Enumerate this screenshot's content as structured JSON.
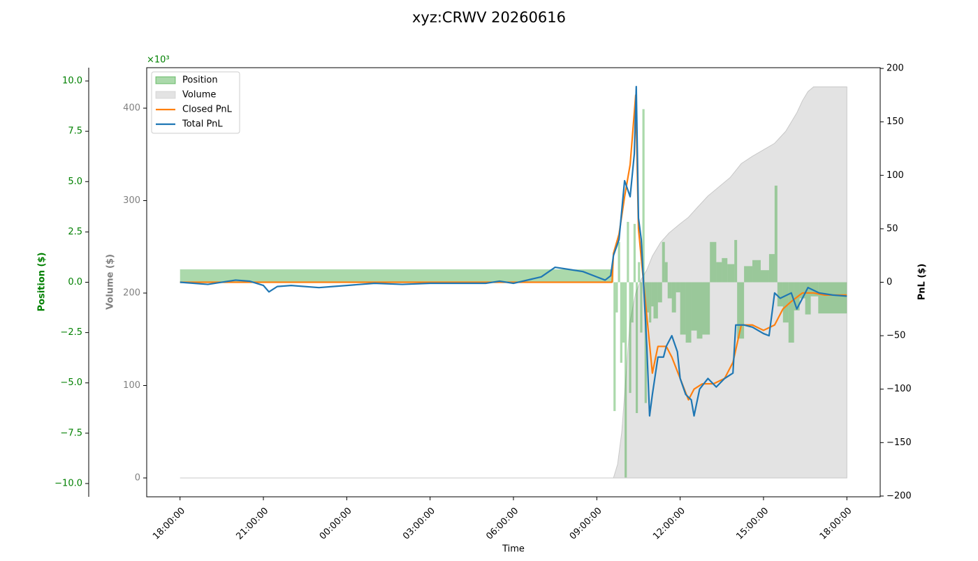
{
  "chart_data": {
    "type": "multi-axis",
    "title": "xyz:CRWV 20260616",
    "xlabel": "Time",
    "ylabel": "Volume ($)",
    "y2label": "PnL ($)",
    "y3label": "Position ($)",
    "y3offset": "×10³",
    "ycolor": "#808080",
    "y2color": "#000000",
    "y3color": "#008000",
    "xlim": [
      -1.2,
      25.2
    ],
    "xticks": [
      {
        "value": 0,
        "label": "18:00:00"
      },
      {
        "value": 3,
        "label": "21:00:00"
      },
      {
        "value": 6,
        "label": "00:00:00"
      },
      {
        "value": 9,
        "label": "03:00:00"
      },
      {
        "value": 12,
        "label": "06:00:00"
      },
      {
        "value": 15,
        "label": "09:00:00"
      },
      {
        "value": 18,
        "label": "12:00:00"
      },
      {
        "value": 21,
        "label": "15:00:00"
      },
      {
        "value": 24,
        "label": "18:00:00"
      }
    ],
    "ylim": [
      -20.4,
      443.8
    ],
    "yticks": [
      0,
      100,
      200,
      300,
      400
    ],
    "y2lim": [
      -200.7,
      200.7
    ],
    "y2ticks": [
      {
        "value": -200,
        "label": "−200"
      },
      {
        "value": -150,
        "label": "−150"
      },
      {
        "value": -100,
        "label": "−100"
      },
      {
        "value": -50,
        "label": "−50"
      },
      0,
      50,
      100,
      150,
      200
    ],
    "y3lim": [
      -10.66,
      10.66
    ],
    "y3ticks": [
      {
        "value": -10,
        "label": "−10.0"
      },
      {
        "value": -7.5,
        "label": "−7.5"
      },
      {
        "value": -5,
        "label": "−5.0"
      },
      {
        "value": -2.5,
        "label": "−2.5"
      },
      {
        "value": 0,
        "label": "0.0"
      },
      {
        "value": 2.5,
        "label": "2.5"
      },
      {
        "value": 5,
        "label": "5.0"
      },
      {
        "value": 7.5,
        "label": "7.5"
      },
      {
        "value": 10,
        "label": "10.0"
      }
    ],
    "legend": "upper left",
    "series": [
      {
        "name": "Position",
        "type": "step-area",
        "axis": "y3",
        "color": "#2ca02c",
        "x": [
          0,
          15.6,
          15.68,
          15.76,
          15.84,
          15.92,
          16.0,
          16.08,
          16.16,
          16.24,
          16.32,
          16.4,
          16.48,
          16.56,
          16.64,
          16.72,
          16.8,
          16.88,
          16.96,
          17.04,
          17.2,
          17.35,
          17.45,
          17.55,
          17.7,
          17.85,
          18.0,
          18.2,
          18.4,
          18.6,
          18.8,
          19.07,
          19.3,
          19.5,
          19.7,
          19.95,
          20.05,
          20.3,
          20.6,
          20.9,
          21.2,
          21.4,
          21.5,
          21.7,
          21.9,
          22.1,
          22.3,
          22.5,
          22.7,
          22.97,
          24
        ],
        "values": [
          0.64,
          -6.4,
          -1.5,
          2.0,
          -4.0,
          -3.0,
          -9.7,
          3.0,
          -5.5,
          -2.0,
          2.9,
          -6.5,
          1.0,
          -2.5,
          8.6,
          -6.0,
          -1.5,
          -2.0,
          -1.2,
          -1.8,
          -1.0,
          2.0,
          1.0,
          -0.8,
          -1.5,
          -0.5,
          -2.6,
          -3.0,
          -2.4,
          -2.8,
          -2.6,
          2.0,
          1.0,
          1.2,
          0.9,
          2.1,
          -2.8,
          0.8,
          1.1,
          0.6,
          1.4,
          4.8,
          -1.2,
          -2.0,
          -3.0,
          -1.4,
          -0.8,
          -1.6,
          -0.7,
          -1.55,
          -1.55
        ]
      },
      {
        "name": "Volume",
        "type": "area",
        "axis": "y",
        "color": "#c8c8c8",
        "x": [
          0,
          15.6,
          15.75,
          15.9,
          16.05,
          16.2,
          16.4,
          16.6,
          16.8,
          17.0,
          17.3,
          17.6,
          18.0,
          18.3,
          18.6,
          19.0,
          19.4,
          19.8,
          20.2,
          20.6,
          21.0,
          21.4,
          21.8,
          22.0,
          22.2,
          22.4,
          22.6,
          22.8,
          24
        ],
        "values": [
          0,
          0,
          15,
          50,
          110,
          170,
          200,
          215,
          225,
          240,
          255,
          265,
          275,
          282,
          292,
          305,
          315,
          325,
          340,
          348,
          355,
          362,
          375,
          385,
          395,
          408,
          418,
          423,
          423
        ]
      },
      {
        "name": "Closed PnL",
        "type": "line",
        "axis": "y2",
        "color": "#ff7f0e",
        "x": [
          0,
          15.55,
          15.6,
          15.8,
          16.0,
          16.2,
          16.4,
          16.5,
          16.7,
          17.0,
          17.2,
          17.5,
          17.7,
          18.0,
          18.3,
          18.5,
          18.8,
          19.2,
          19.6,
          19.9,
          20.2,
          20.6,
          21.0,
          21.4,
          21.7,
          22.0,
          22.4,
          22.8,
          23.2,
          24
        ],
        "values": [
          0,
          0,
          27,
          45,
          80,
          110,
          175,
          50,
          -5,
          -85,
          -60,
          -60,
          -70,
          -90,
          -110,
          -100,
          -95,
          -95,
          -90,
          -75,
          -40,
          -40,
          -45,
          -40,
          -25,
          -18,
          -10,
          -10,
          -12,
          -12
        ]
      },
      {
        "name": "Total PnL",
        "type": "line",
        "axis": "y2",
        "color": "#1f77b4",
        "x": [
          0,
          0.5,
          1,
          2,
          2.5,
          3,
          3.2,
          3.5,
          4,
          5,
          5.5,
          6,
          7,
          8,
          9,
          10,
          11,
          11.5,
          12,
          13,
          13.5,
          14,
          14.5,
          15,
          15.3,
          15.5,
          15.6,
          15.8,
          16.0,
          16.2,
          16.35,
          16.42,
          16.5,
          16.6,
          16.7,
          16.8,
          16.9,
          17.0,
          17.2,
          17.4,
          17.5,
          17.7,
          17.9,
          18.0,
          18.2,
          18.4,
          18.5,
          18.7,
          19.0,
          19.3,
          19.6,
          19.9,
          20.0,
          20.3,
          20.6,
          21.0,
          21.2,
          21.4,
          21.6,
          22.0,
          22.2,
          22.6,
          23,
          23.5,
          24
        ],
        "values": [
          0,
          -1,
          -2,
          2,
          1,
          -3,
          -9,
          -4,
          -3,
          -5,
          -4,
          -3,
          -1,
          -2,
          -1,
          -1,
          -1,
          1,
          -1,
          5,
          14,
          12,
          10,
          5,
          2,
          6,
          25,
          40,
          95,
          80,
          120,
          183,
          60,
          40,
          -10,
          -60,
          -125,
          -105,
          -70,
          -70,
          -60,
          -50,
          -65,
          -90,
          -105,
          -110,
          -125,
          -100,
          -90,
          -98,
          -90,
          -85,
          -40,
          -40,
          -42,
          -48,
          -50,
          -10,
          -15,
          -10,
          -25,
          -5,
          -10,
          -12,
          -13
        ]
      }
    ]
  }
}
